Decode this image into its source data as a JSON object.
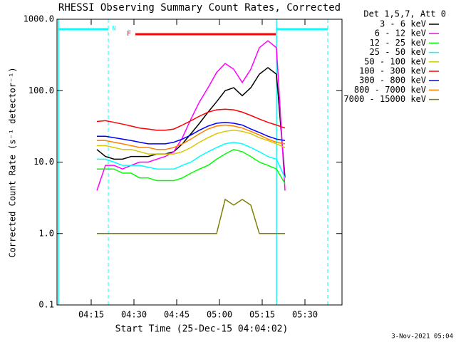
{
  "chart_data": {
    "type": "line",
    "title": "RHESSI Observing Summary Count Rates, Corrected",
    "x_label": "Start Time (25-Dec-15 04:04:02)",
    "y_label": "Corrected Count Rate (s⁻¹ detector⁻¹)",
    "legend_title": "Det 1,5,7, Att 0",
    "timestamp": "3-Nov-2021 05:04",
    "annotations": [
      "N",
      "F"
    ],
    "log_y": true,
    "xlim": [
      243,
      343
    ],
    "xticks": [
      {
        "value": 255,
        "label": "04:15"
      },
      {
        "value": 270,
        "label": "04:30"
      },
      {
        "value": 285,
        "label": "04:45"
      },
      {
        "value": 300,
        "label": "05:00"
      },
      {
        "value": 315,
        "label": "05:15"
      },
      {
        "value": 330,
        "label": "05:30"
      }
    ],
    "ylim": [
      0.1,
      1000
    ],
    "yticks": [
      0.1,
      {
        "value": 1,
        "label": "1.0"
      },
      {
        "value": 10,
        "label": "10.0"
      },
      {
        "value": 100,
        "label": "100.0"
      },
      {
        "value": 1000,
        "label": "1000.0"
      }
    ],
    "x": [
      257,
      260,
      263,
      266,
      269,
      272,
      275,
      278,
      281,
      284,
      287,
      290,
      293,
      296,
      299,
      302,
      305,
      308,
      311,
      314,
      317,
      320,
      323
    ],
    "series": [
      {
        "name": "3 - 6 keV",
        "color": "#000000",
        "values": [
          15,
          12,
          11,
          11,
          12,
          12,
          12,
          13,
          13,
          14,
          18,
          25,
          35,
          50,
          70,
          100,
          110,
          85,
          110,
          170,
          210,
          170,
          6
        ]
      },
      {
        "name": "6 - 12 keV",
        "color": "#ff00ff",
        "values": [
          4,
          9,
          9,
          8,
          9,
          10,
          10,
          11,
          12,
          14,
          22,
          40,
          70,
          110,
          180,
          240,
          200,
          130,
          200,
          400,
          500,
          400,
          4
        ]
      },
      {
        "name": "12 - 25 keV",
        "color": "#00ff00",
        "values": [
          8,
          8,
          8,
          7,
          7,
          6,
          6,
          5.5,
          5.5,
          5.5,
          6,
          7,
          8,
          9,
          11,
          13,
          15,
          14,
          12,
          10,
          9,
          8,
          5
        ]
      },
      {
        "name": "25 - 50 keV",
        "color": "#00ffff",
        "values": [
          11,
          11,
          10,
          9,
          9,
          9,
          8.5,
          8,
          8,
          8,
          9,
          10,
          12,
          14,
          16,
          18,
          19,
          18,
          16,
          14,
          12,
          11,
          6
        ]
      },
      {
        "name": "50 - 100 keV",
        "color": "#d8c800",
        "values": [
          17,
          17,
          16,
          15,
          15,
          14,
          13,
          13,
          13,
          13,
          14,
          16,
          19,
          22,
          25,
          27,
          28,
          27,
          25,
          22,
          20,
          18,
          16
        ]
      },
      {
        "name": "100 - 300 keV",
        "color": "#ff0000",
        "values": [
          37,
          38,
          36,
          34,
          32,
          30,
          29,
          28,
          28,
          29,
          33,
          38,
          44,
          50,
          54,
          55,
          54,
          50,
          45,
          40,
          36,
          33,
          30
        ]
      },
      {
        "name": "300 - 800 keV",
        "color": "#0000ff",
        "values": [
          23,
          23,
          22,
          21,
          20,
          19,
          18,
          18,
          18,
          19,
          21,
          24,
          28,
          32,
          35,
          36,
          35,
          33,
          29,
          26,
          23,
          21,
          20
        ]
      },
      {
        "name": "800 - 7000 keV",
        "color": "#ff8000",
        "values": [
          20,
          20,
          19,
          18,
          17,
          16,
          16,
          15,
          15,
          16,
          18,
          21,
          25,
          29,
          32,
          33,
          32,
          30,
          27,
          24,
          21,
          19,
          18
        ]
      },
      {
        "name": "7000 - 15000 keV",
        "color": "#808000",
        "values": [
          1,
          1,
          1,
          1,
          1,
          1,
          1,
          1,
          1,
          1,
          1,
          1,
          1,
          1,
          1,
          3,
          2.5,
          3,
          2.5,
          1,
          1,
          1,
          1
        ]
      }
    ]
  }
}
